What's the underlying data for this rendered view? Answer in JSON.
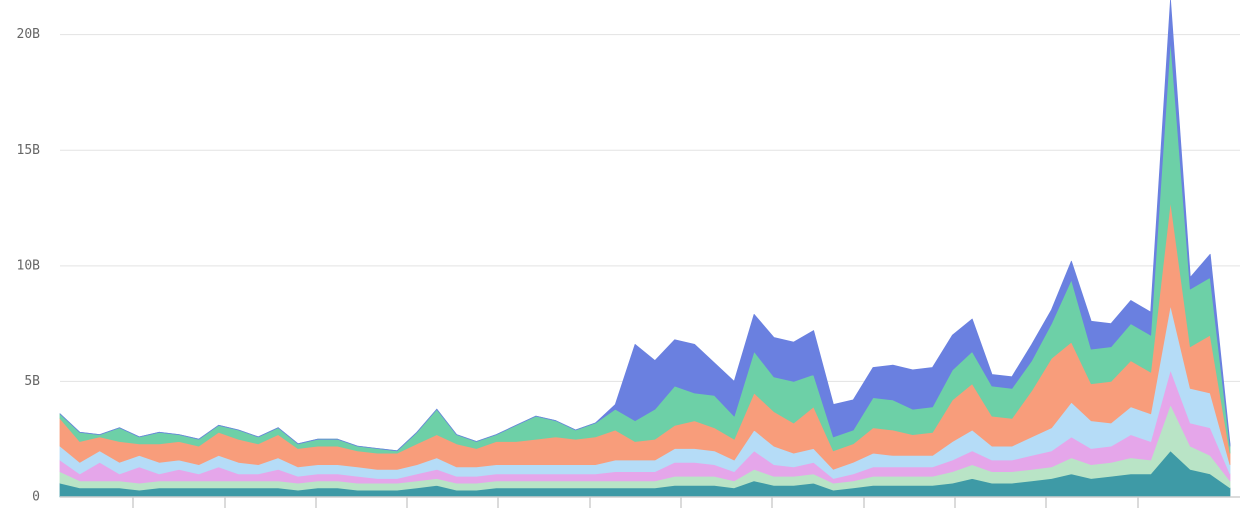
{
  "chart_data": {
    "type": "stacked-area",
    "ylim": [
      0,
      21.5
    ],
    "yticks": [
      0,
      {
        "value": 5,
        "label": "5B"
      },
      {
        "value": 10,
        "label": "10B"
      },
      {
        "value": 15,
        "label": "15B"
      },
      {
        "value": 20,
        "label": "20B"
      }
    ],
    "grid": true,
    "series": [
      {
        "color": "#3e9aa6",
        "values": [
          0.6,
          0.4,
          0.4,
          0.4,
          0.3,
          0.4,
          0.4,
          0.4,
          0.4,
          0.4,
          0.4,
          0.4,
          0.3,
          0.4,
          0.4,
          0.3,
          0.3,
          0.3,
          0.4,
          0.5,
          0.3,
          0.3,
          0.4,
          0.4,
          0.4,
          0.4,
          0.4,
          0.4,
          0.4,
          0.4,
          0.4,
          0.5,
          0.5,
          0.5,
          0.4,
          0.7,
          0.5,
          0.5,
          0.6,
          0.3,
          0.4,
          0.5,
          0.5,
          0.5,
          0.5,
          0.6,
          0.8,
          0.6,
          0.6,
          0.7,
          0.8,
          1.0,
          0.8,
          0.9,
          1.0,
          1.0,
          2.0,
          1.2,
          1.0,
          0.4
        ]
      },
      {
        "color": "#b9e4c6",
        "values": [
          0.5,
          0.3,
          0.3,
          0.3,
          0.3,
          0.3,
          0.3,
          0.3,
          0.3,
          0.3,
          0.3,
          0.3,
          0.3,
          0.3,
          0.3,
          0.3,
          0.3,
          0.3,
          0.3,
          0.3,
          0.3,
          0.3,
          0.3,
          0.3,
          0.3,
          0.3,
          0.3,
          0.3,
          0.3,
          0.3,
          0.3,
          0.4,
          0.4,
          0.4,
          0.3,
          0.5,
          0.4,
          0.4,
          0.4,
          0.3,
          0.3,
          0.4,
          0.4,
          0.4,
          0.4,
          0.5,
          0.6,
          0.5,
          0.5,
          0.5,
          0.5,
          0.7,
          0.6,
          0.6,
          0.7,
          0.6,
          2.0,
          1.0,
          0.8,
          0.3
        ]
      },
      {
        "color": "#e5a6ea",
        "values": [
          0.5,
          0.3,
          0.8,
          0.3,
          0.7,
          0.3,
          0.5,
          0.3,
          0.6,
          0.3,
          0.3,
          0.5,
          0.3,
          0.3,
          0.3,
          0.3,
          0.2,
          0.2,
          0.3,
          0.4,
          0.3,
          0.3,
          0.3,
          0.3,
          0.3,
          0.3,
          0.3,
          0.3,
          0.4,
          0.4,
          0.4,
          0.6,
          0.6,
          0.5,
          0.4,
          0.8,
          0.5,
          0.4,
          0.5,
          0.2,
          0.3,
          0.4,
          0.4,
          0.4,
          0.4,
          0.5,
          0.6,
          0.5,
          0.5,
          0.6,
          0.7,
          0.9,
          0.7,
          0.7,
          1.0,
          0.8,
          1.5,
          1.0,
          1.2,
          0.3
        ]
      },
      {
        "color": "#b5dcf7",
        "values": [
          0.6,
          0.5,
          0.5,
          0.5,
          0.5,
          0.5,
          0.4,
          0.4,
          0.5,
          0.5,
          0.4,
          0.5,
          0.4,
          0.4,
          0.4,
          0.4,
          0.4,
          0.4,
          0.4,
          0.5,
          0.4,
          0.4,
          0.4,
          0.4,
          0.4,
          0.4,
          0.4,
          0.4,
          0.5,
          0.5,
          0.5,
          0.6,
          0.6,
          0.6,
          0.5,
          0.9,
          0.8,
          0.6,
          0.6,
          0.4,
          0.5,
          0.6,
          0.5,
          0.5,
          0.5,
          0.8,
          0.9,
          0.6,
          0.6,
          0.8,
          1.0,
          1.5,
          1.2,
          1.0,
          1.2,
          1.2,
          2.8,
          1.5,
          1.5,
          0.4
        ]
      },
      {
        "color": "#f89d7b",
        "values": [
          1.2,
          0.9,
          0.6,
          0.9,
          0.5,
          0.8,
          0.8,
          0.8,
          1.0,
          1.0,
          0.9,
          1.0,
          0.8,
          0.8,
          0.8,
          0.7,
          0.7,
          0.7,
          0.9,
          1.0,
          1.0,
          0.8,
          1.0,
          1.0,
          1.1,
          1.2,
          1.1,
          1.2,
          1.3,
          0.8,
          0.9,
          1.0,
          1.2,
          1.0,
          0.9,
          1.6,
          1.5,
          1.3,
          1.8,
          0.8,
          0.8,
          1.1,
          1.1,
          0.9,
          1.0,
          1.8,
          2.0,
          1.3,
          1.2,
          2.0,
          3.0,
          2.6,
          1.6,
          1.8,
          2.0,
          1.8,
          4.5,
          1.8,
          2.5,
          0.5
        ]
      },
      {
        "color": "#6dd0a7",
        "values": [
          0.2,
          0.4,
          0.1,
          0.6,
          0.3,
          0.5,
          0.3,
          0.3,
          0.3,
          0.4,
          0.3,
          0.3,
          0.2,
          0.3,
          0.3,
          0.2,
          0.2,
          0.1,
          0.5,
          1.1,
          0.4,
          0.3,
          0.3,
          0.7,
          1.0,
          0.7,
          0.4,
          0.6,
          0.9,
          0.9,
          1.3,
          1.7,
          1.2,
          1.4,
          1.0,
          1.8,
          1.5,
          1.8,
          1.4,
          0.6,
          0.6,
          1.3,
          1.3,
          1.1,
          1.1,
          1.3,
          1.4,
          1.3,
          1.3,
          1.3,
          1.5,
          2.7,
          1.5,
          1.5,
          1.6,
          1.6,
          7.0,
          2.5,
          2.5,
          0.3
        ]
      },
      {
        "color": "#6a80e0",
        "values": [
          0,
          0,
          0,
          0,
          0,
          0,
          0,
          0,
          0,
          0,
          0,
          0,
          0,
          0,
          0,
          0,
          0,
          0,
          0,
          0,
          0,
          0,
          0,
          0,
          0,
          0,
          0,
          0,
          0.2,
          3.3,
          2.1,
          2.0,
          2.1,
          1.4,
          1.5,
          1.6,
          1.7,
          1.7,
          1.9,
          1.4,
          1.3,
          1.3,
          1.5,
          1.7,
          1.7,
          1.5,
          1.4,
          0.5,
          0.5,
          0.7,
          0.6,
          0.8,
          1.2,
          1.0,
          1.0,
          1.0,
          1.7,
          0.5,
          1.0,
          0.1
        ]
      }
    ]
  }
}
